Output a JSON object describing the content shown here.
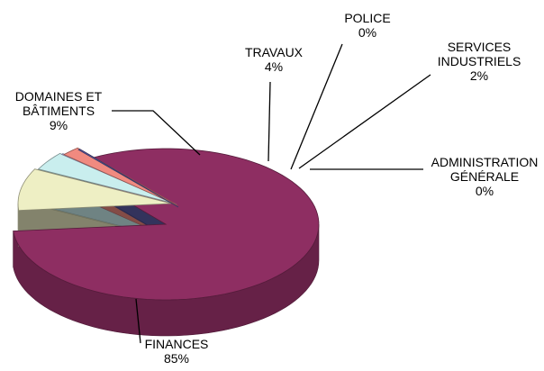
{
  "chart_data": {
    "type": "pie",
    "style": "3d-exploded",
    "title": "",
    "legend": "none",
    "slices": [
      {
        "name": "FINANCES",
        "label_lines": [
          "FINANCES",
          "85%"
        ],
        "value": 85,
        "color": "#8E2E62"
      },
      {
        "name": "DOMAINES ET BÂTIMENTS",
        "label_lines": [
          "DOMAINES ET",
          "BÂTIMENTS",
          "9%"
        ],
        "value": 9,
        "color": "#EEEFC4"
      },
      {
        "name": "TRAVAUX",
        "label_lines": [
          "TRAVAUX",
          "4%"
        ],
        "value": 4,
        "color": "#C9EEEE"
      },
      {
        "name": "POLICE",
        "label_lines": [
          "POLICE",
          "0%"
        ],
        "value": 0,
        "color": "#C8C8FA"
      },
      {
        "name": "SERVICES INDUSTRIELS",
        "label_lines": [
          "SERVICES",
          "INDUSTRIELS",
          "2%"
        ],
        "value": 2,
        "color": "#F08A80"
      },
      {
        "name": "ADMINISTRATION GÉNÉRALE",
        "label_lines": [
          "ADMINISTRATION",
          "GÉNÉRALE",
          "0%"
        ],
        "value": 0,
        "color": "#5C5CA8"
      }
    ]
  }
}
